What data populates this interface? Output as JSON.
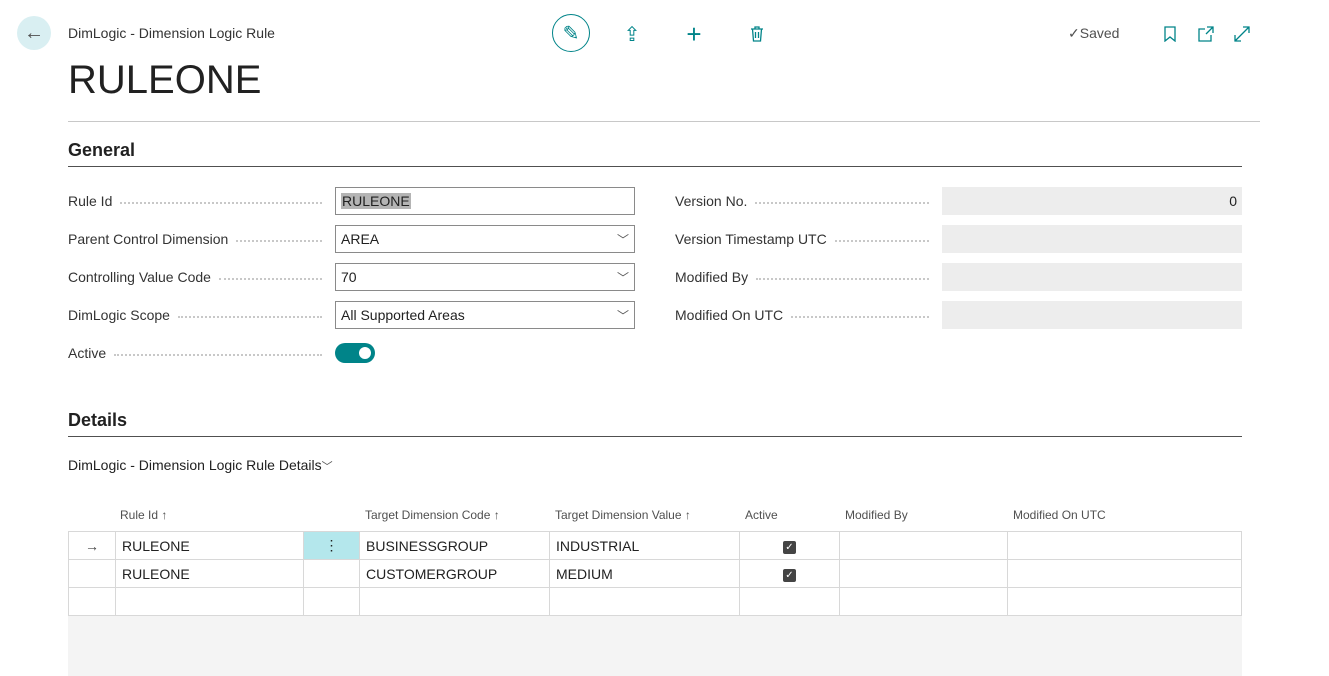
{
  "header": {
    "breadcrumb": "DimLogic - Dimension Logic Rule",
    "title": "RULEONE",
    "status": "Saved",
    "status_icon": "check-icon"
  },
  "general": {
    "heading": "General",
    "left": [
      {
        "label": "Rule Id",
        "value": "RULEONE"
      },
      {
        "label": "Parent Control Dimension",
        "value": "AREA"
      },
      {
        "label": "Controlling Value Code",
        "value": "70"
      },
      {
        "label": "DimLogic Scope",
        "value": "All Supported Areas"
      },
      {
        "label": "Active",
        "value": true
      }
    ],
    "right": [
      {
        "label": "Version No.",
        "value": "0"
      },
      {
        "label": "Version Timestamp UTC",
        "value": ""
      },
      {
        "label": "Modified By",
        "value": ""
      },
      {
        "label": "Modified On UTC",
        "value": ""
      }
    ]
  },
  "details": {
    "heading": "Details",
    "subpage_title": "DimLogic - Dimension Logic Rule Details",
    "columns": [
      "Rule Id ↑",
      "Target Dimension Code ↑",
      "Target Dimension Value ↑",
      "Active",
      "Modified By",
      "Modified On UTC"
    ],
    "rows": [
      {
        "rule_id": "RULEONE",
        "code": "BUSINESSGROUP",
        "value": "INDUSTRIAL",
        "active": true,
        "modified_by": "",
        "modified_on": ""
      },
      {
        "rule_id": "RULEONE",
        "code": "CUSTOMERGROUP",
        "value": "MEDIUM",
        "active": true,
        "modified_by": "",
        "modified_on": ""
      }
    ]
  },
  "colors": {
    "accent": "#008489",
    "selected_cell": "#b4e7ec"
  }
}
